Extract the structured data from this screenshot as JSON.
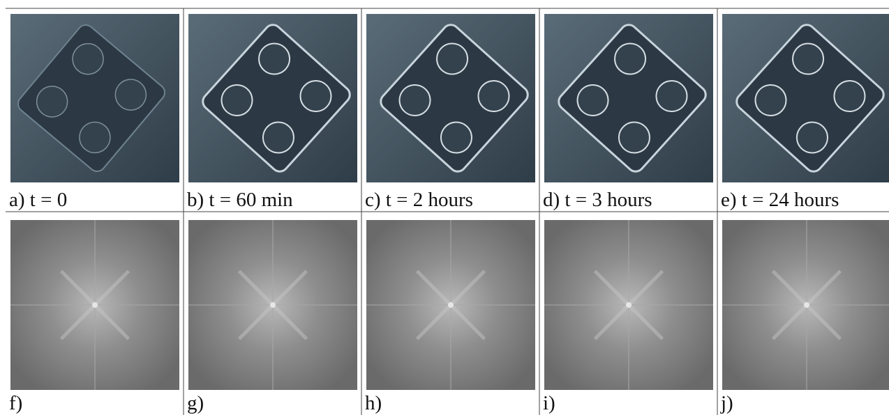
{
  "rows": [
    [
      "a) t = 0",
      "b) t = 60 min",
      "c) t = 2 hours",
      "d) t = 3 hours",
      "e) t = 24 hours"
    ],
    [
      "f)",
      "g)",
      "h)",
      "i)",
      "j)"
    ]
  ]
}
